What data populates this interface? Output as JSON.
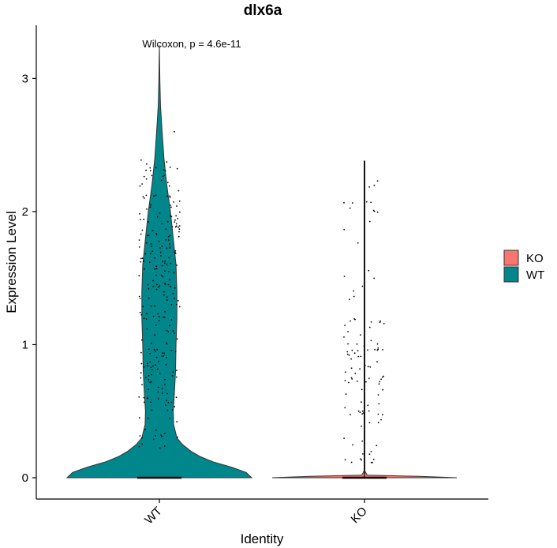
{
  "chart_data": {
    "type": "violin",
    "title": "dlx6a",
    "xlabel": "Identity",
    "ylabel": "Expression Level",
    "categories": [
      "WT",
      "KO"
    ],
    "ylim": [
      -0.16,
      3.4
    ],
    "yticks": [
      0,
      1,
      2,
      3
    ],
    "ytick_labels": [
      "0",
      "1",
      "2",
      "3"
    ],
    "annotation": "Wilcoxon, p = 4.6e-11",
    "legend": {
      "placement": "right",
      "entries": [
        {
          "label": "KO",
          "color": "#F8766D"
        },
        {
          "label": "WT",
          "color": "#00868B"
        }
      ]
    },
    "series": [
      {
        "name": "WT",
        "color": "#00868B",
        "max": 3.25,
        "density_profile": [
          [
            0.0,
            1.0
          ],
          [
            0.04,
            0.94
          ],
          [
            0.08,
            0.78
          ],
          [
            0.12,
            0.58
          ],
          [
            0.16,
            0.44
          ],
          [
            0.2,
            0.34
          ],
          [
            0.25,
            0.25
          ],
          [
            0.3,
            0.19
          ],
          [
            0.4,
            0.155
          ],
          [
            0.5,
            0.15
          ],
          [
            0.6,
            0.16
          ],
          [
            0.8,
            0.175
          ],
          [
            1.0,
            0.18
          ],
          [
            1.2,
            0.19
          ],
          [
            1.4,
            0.19
          ],
          [
            1.6,
            0.18
          ],
          [
            1.8,
            0.15
          ],
          [
            2.0,
            0.12
          ],
          [
            2.2,
            0.08
          ],
          [
            2.4,
            0.05
          ],
          [
            2.6,
            0.03
          ],
          [
            2.8,
            0.012
          ],
          [
            3.0,
            0.005
          ],
          [
            3.25,
            0.0
          ]
        ]
      },
      {
        "name": "KO",
        "color": "#F8766D",
        "max": 2.38,
        "density_profile": [
          [
            0.0,
            1.0
          ],
          [
            0.01,
            0.6
          ],
          [
            0.02,
            0.03
          ],
          [
            0.05,
            0.004
          ],
          [
            2.38,
            0.004
          ]
        ]
      }
    ]
  }
}
